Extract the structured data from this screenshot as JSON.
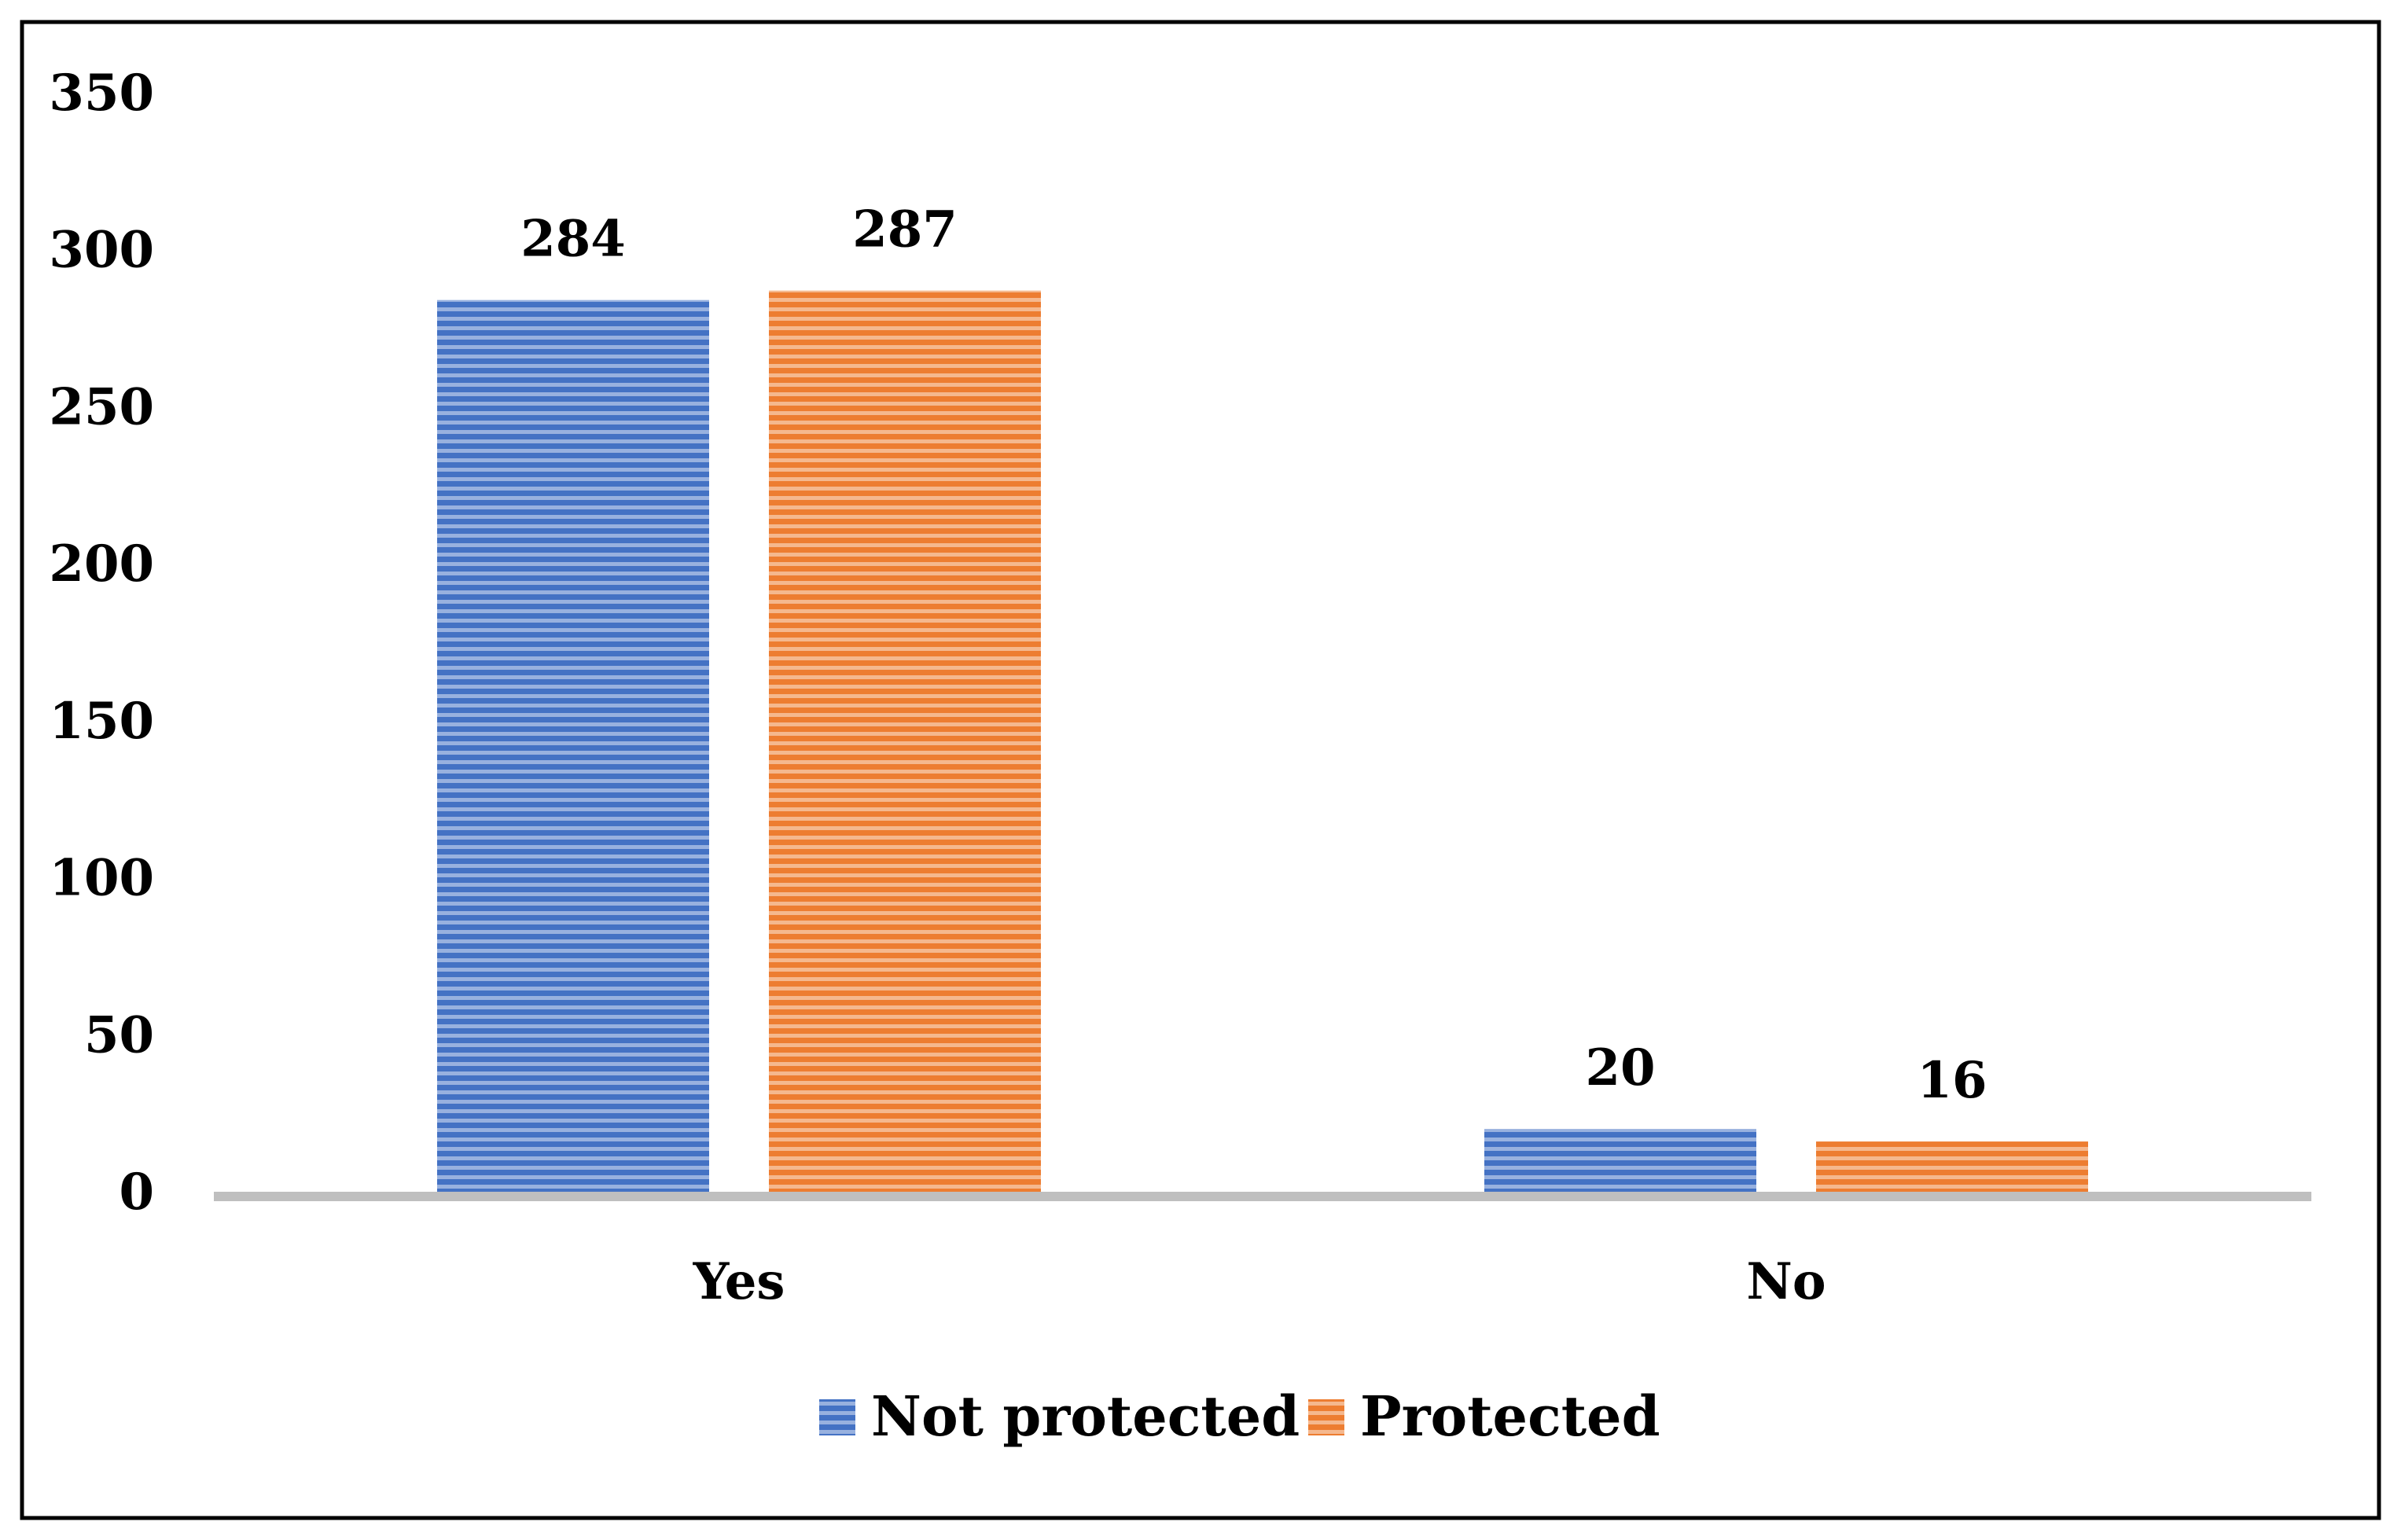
{
  "chart_data": {
    "type": "bar",
    "categories": [
      "Yes",
      "No"
    ],
    "series": [
      {
        "name": "Not protected",
        "values": [
          284,
          20
        ],
        "color": "#4472C4"
      },
      {
        "name": "Protected",
        "values": [
          287,
          16
        ],
        "color": "#ED7D31"
      }
    ],
    "ylim": [
      0,
      350
    ],
    "yticks": [
      "0",
      "50",
      "100",
      "150",
      "200",
      "250",
      "300",
      "350"
    ],
    "data_labels": true,
    "grid": false,
    "legend": "bottom-center",
    "pattern": "horizontal-stripes"
  }
}
